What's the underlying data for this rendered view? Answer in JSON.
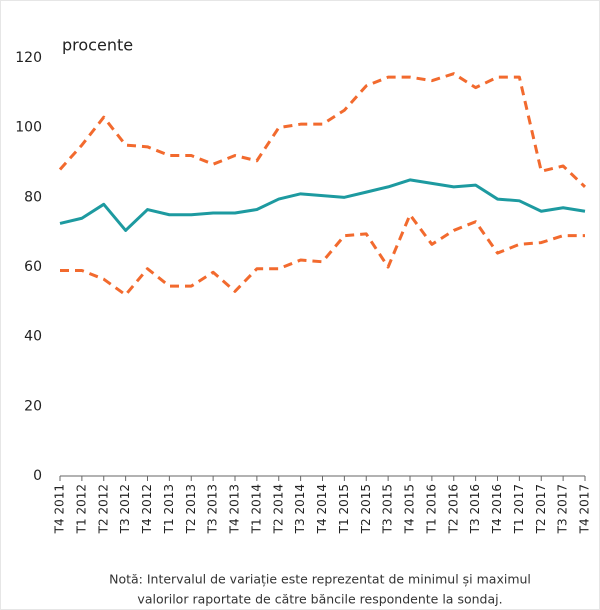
{
  "chart_data": {
    "type": "line",
    "y_unit_label": "procente",
    "categories": [
      "T4 2011",
      "T1 2012",
      "T2 2012",
      "T3 2012",
      "T4 2012",
      "T1 2013",
      "T2 2013",
      "T3 2013",
      "T4 2013",
      "T1 2014",
      "T2 2014",
      "T3 2014",
      "T4 2014",
      "T1 2015",
      "T2 2015",
      "T3 2015",
      "T4 2015",
      "T1 2016",
      "T2 2016",
      "T3 2016",
      "T4 2016",
      "T1 2017",
      "T2 2017",
      "T3 2017",
      "T4 2017"
    ],
    "series": [
      {
        "color": "#f26a2e",
        "dashed": true,
        "values": [
          88,
          95,
          103,
          95,
          94.5,
          92,
          92,
          89.5,
          92,
          90.5,
          100,
          101,
          101,
          105,
          112,
          114.5,
          114.5,
          113.5,
          115.5,
          111.5,
          114.5,
          114.5,
          87.5,
          89,
          83
        ]
      },
      {
        "color": "#1d9aa0",
        "dashed": false,
        "values": [
          72.5,
          74,
          78,
          70.5,
          76.5,
          75,
          75,
          75.5,
          75.5,
          76.5,
          79.5,
          81,
          80.5,
          80,
          81.5,
          83,
          85,
          84,
          83,
          83.5,
          79.5,
          79,
          76,
          77,
          76
        ]
      },
      {
        "color": "#f26a2e",
        "dashed": true,
        "values": [
          59,
          59,
          56.5,
          52,
          59.5,
          54.5,
          54.5,
          58.5,
          53,
          59.5,
          59.5,
          62,
          61.5,
          69,
          69.5,
          60,
          75,
          66.5,
          70.5,
          73,
          64,
          66.5,
          67,
          69,
          69
        ]
      }
    ],
    "ylim": [
      0,
      120
    ],
    "yticks": [
      0,
      20,
      40,
      60,
      80,
      100,
      120
    ],
    "grid": false,
    "note": [
      "Notă: Intervalul de variație este reprezentat de minimul și maximul",
      "valorilor raportate de către băncile respondente la sondaj."
    ]
  }
}
